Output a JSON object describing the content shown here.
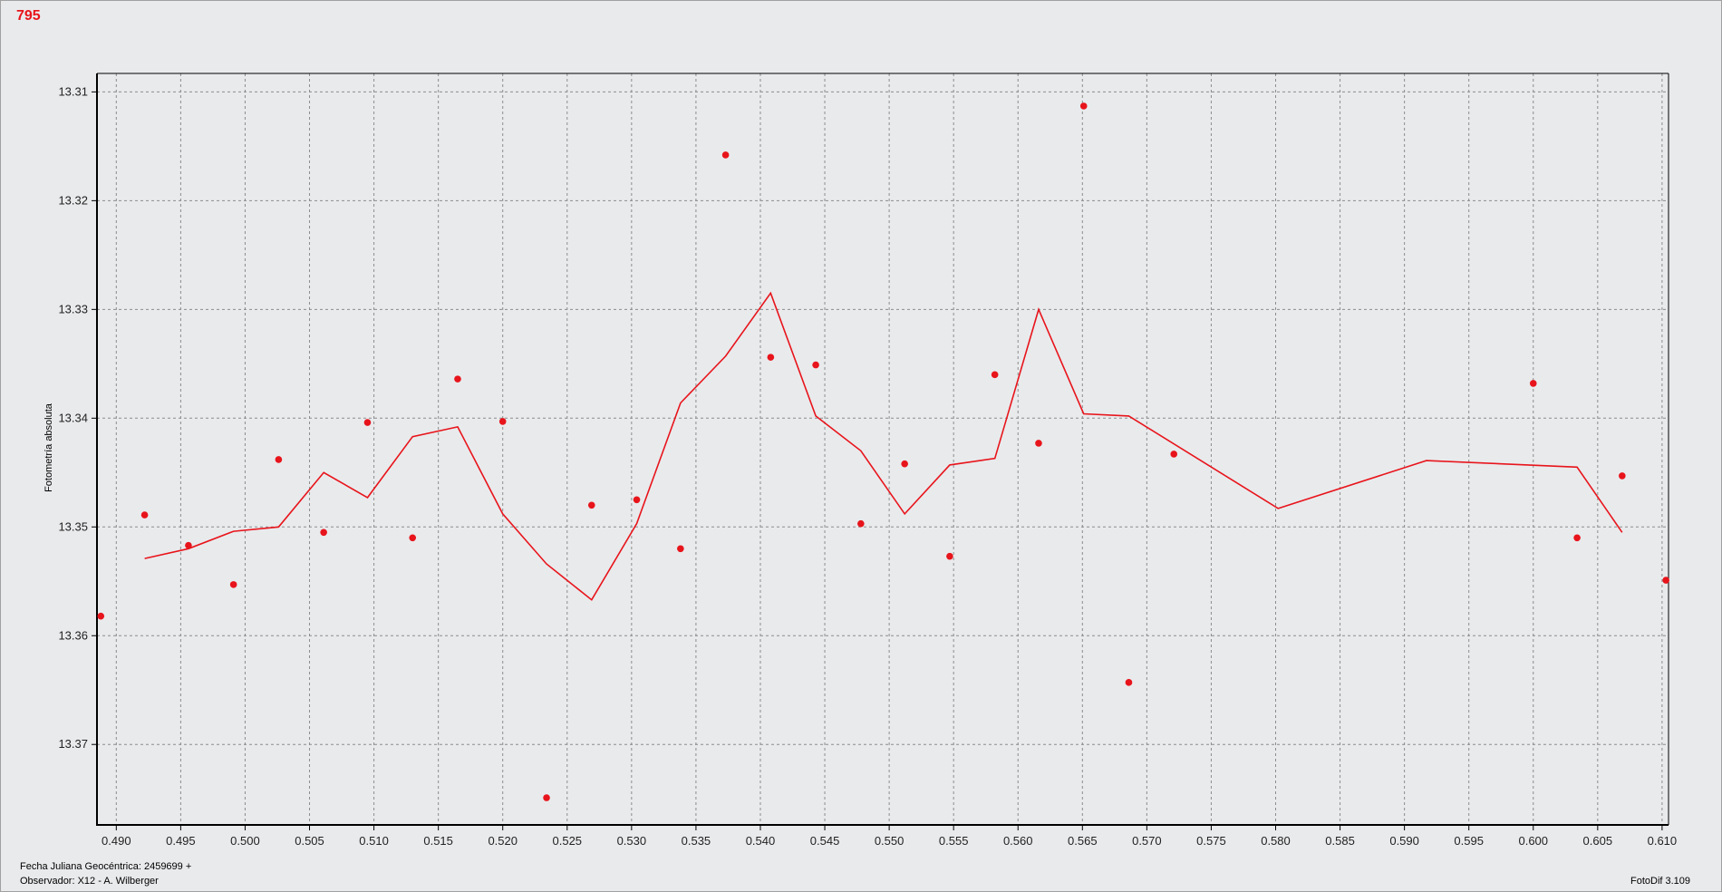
{
  "plot_id": "795",
  "chart_data": {
    "type": "scatter",
    "ylabel": "Fotometría absoluta",
    "xlim": [
      0.4885,
      0.6105
    ],
    "ylim": [
      13.3774,
      13.3083
    ],
    "y_inverted": true,
    "grid": true,
    "x_ticks": [
      "0.490",
      "0.495",
      "0.500",
      "0.505",
      "0.510",
      "0.515",
      "0.520",
      "0.525",
      "0.530",
      "0.535",
      "0.540",
      "0.545",
      "0.550",
      "0.555",
      "0.560",
      "0.565",
      "0.570",
      "0.575",
      "0.580",
      "0.585",
      "0.590",
      "0.595",
      "0.600",
      "0.605",
      "0.610"
    ],
    "y_ticks": [
      "13.31",
      "13.32",
      "13.33",
      "13.34",
      "13.35",
      "13.36",
      "13.37"
    ],
    "color": "#e8141b",
    "series": [
      {
        "kind": "points",
        "x": [
          0.4888,
          0.4922,
          0.4956,
          0.4991,
          0.5026,
          0.5061,
          0.5095,
          0.513,
          0.5165,
          0.52,
          0.5234,
          0.5269,
          0.5304,
          0.5338,
          0.5373,
          0.5408,
          0.5443,
          0.5478,
          0.5512,
          0.5547,
          0.5582,
          0.5616,
          0.5651,
          0.5686,
          0.5721,
          0.6,
          0.6034,
          0.6069,
          0.6103
        ],
        "y": [
          13.3582,
          13.3489,
          13.3517,
          13.3553,
          13.3438,
          13.3505,
          13.3404,
          13.351,
          13.3364,
          13.3403,
          13.3749,
          13.348,
          13.3475,
          13.352,
          13.3158,
          13.3344,
          13.3351,
          13.3497,
          13.3442,
          13.3527,
          13.336,
          13.3423,
          13.3113,
          13.3643,
          13.3433,
          13.3368,
          13.351,
          13.3453,
          13.3549
        ]
      },
      {
        "kind": "line",
        "x": [
          0.4922,
          0.4956,
          0.4991,
          0.5026,
          0.5061,
          0.5095,
          0.513,
          0.5165,
          0.52,
          0.5234,
          0.5269,
          0.5304,
          0.5338,
          0.5373,
          0.5408,
          0.5443,
          0.5478,
          0.5512,
          0.5547,
          0.5582,
          0.5616,
          0.5651,
          0.5686,
          0.5802,
          0.5917,
          0.6034,
          0.6069
        ],
        "y": [
          13.3529,
          13.352,
          13.3504,
          13.35,
          13.345,
          13.3473,
          13.3417,
          13.3408,
          13.3488,
          13.3534,
          13.3567,
          13.3497,
          13.3386,
          13.3343,
          13.3285,
          13.3398,
          13.343,
          13.3488,
          13.3443,
          13.3437,
          13.33,
          13.3396,
          13.3398,
          13.3483,
          13.3439,
          13.3445,
          13.3505
        ]
      }
    ]
  },
  "footer": {
    "date_label": "Fecha Juliana Geocéntrica: 2459699 +",
    "observer": "Observador: X12 - A. Wilberger",
    "software": "FotoDif 3.109"
  }
}
